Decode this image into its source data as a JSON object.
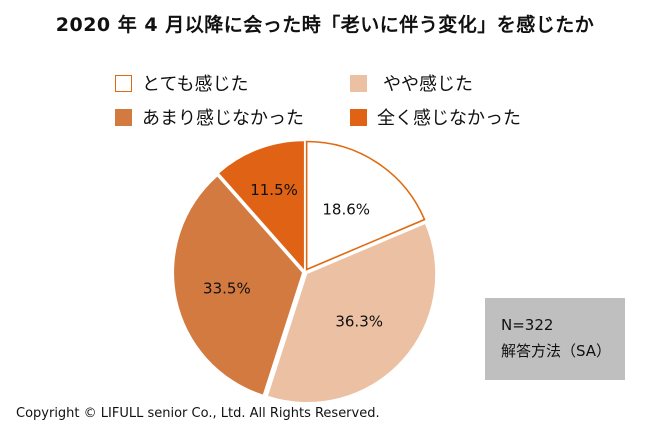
{
  "colors": {
    "outline": "#e06a10",
    "very": "#ffffff",
    "somewhat": "#ebc0a3",
    "notmuch": "#d27a40",
    "notatall": "#e06215"
  },
  "chart_data": {
    "type": "pie",
    "title": "2020 年 4 月以降に会った時「老いに伴う変化」を感じたか",
    "legend_position": "top",
    "slices": [
      {
        "name": "とても感じた",
        "value": 18.6,
        "label": "18.6%",
        "color": "#ffffff"
      },
      {
        "name": "やや感じた",
        "value": 36.3,
        "label": "36.3%",
        "color": "#ebc0a3"
      },
      {
        "name": "あまり感じなかった",
        "value": 33.5,
        "label": "33.5%",
        "color": "#d27a40"
      },
      {
        "name": "全く感じなかった",
        "value": 11.5,
        "label": "11.5%",
        "color": "#e06215"
      }
    ]
  },
  "note": {
    "n": "N=322",
    "method": "解答方法（SA）"
  },
  "copyright": "Copyright © LIFULL senior Co., Ltd. All Rights Reserved."
}
